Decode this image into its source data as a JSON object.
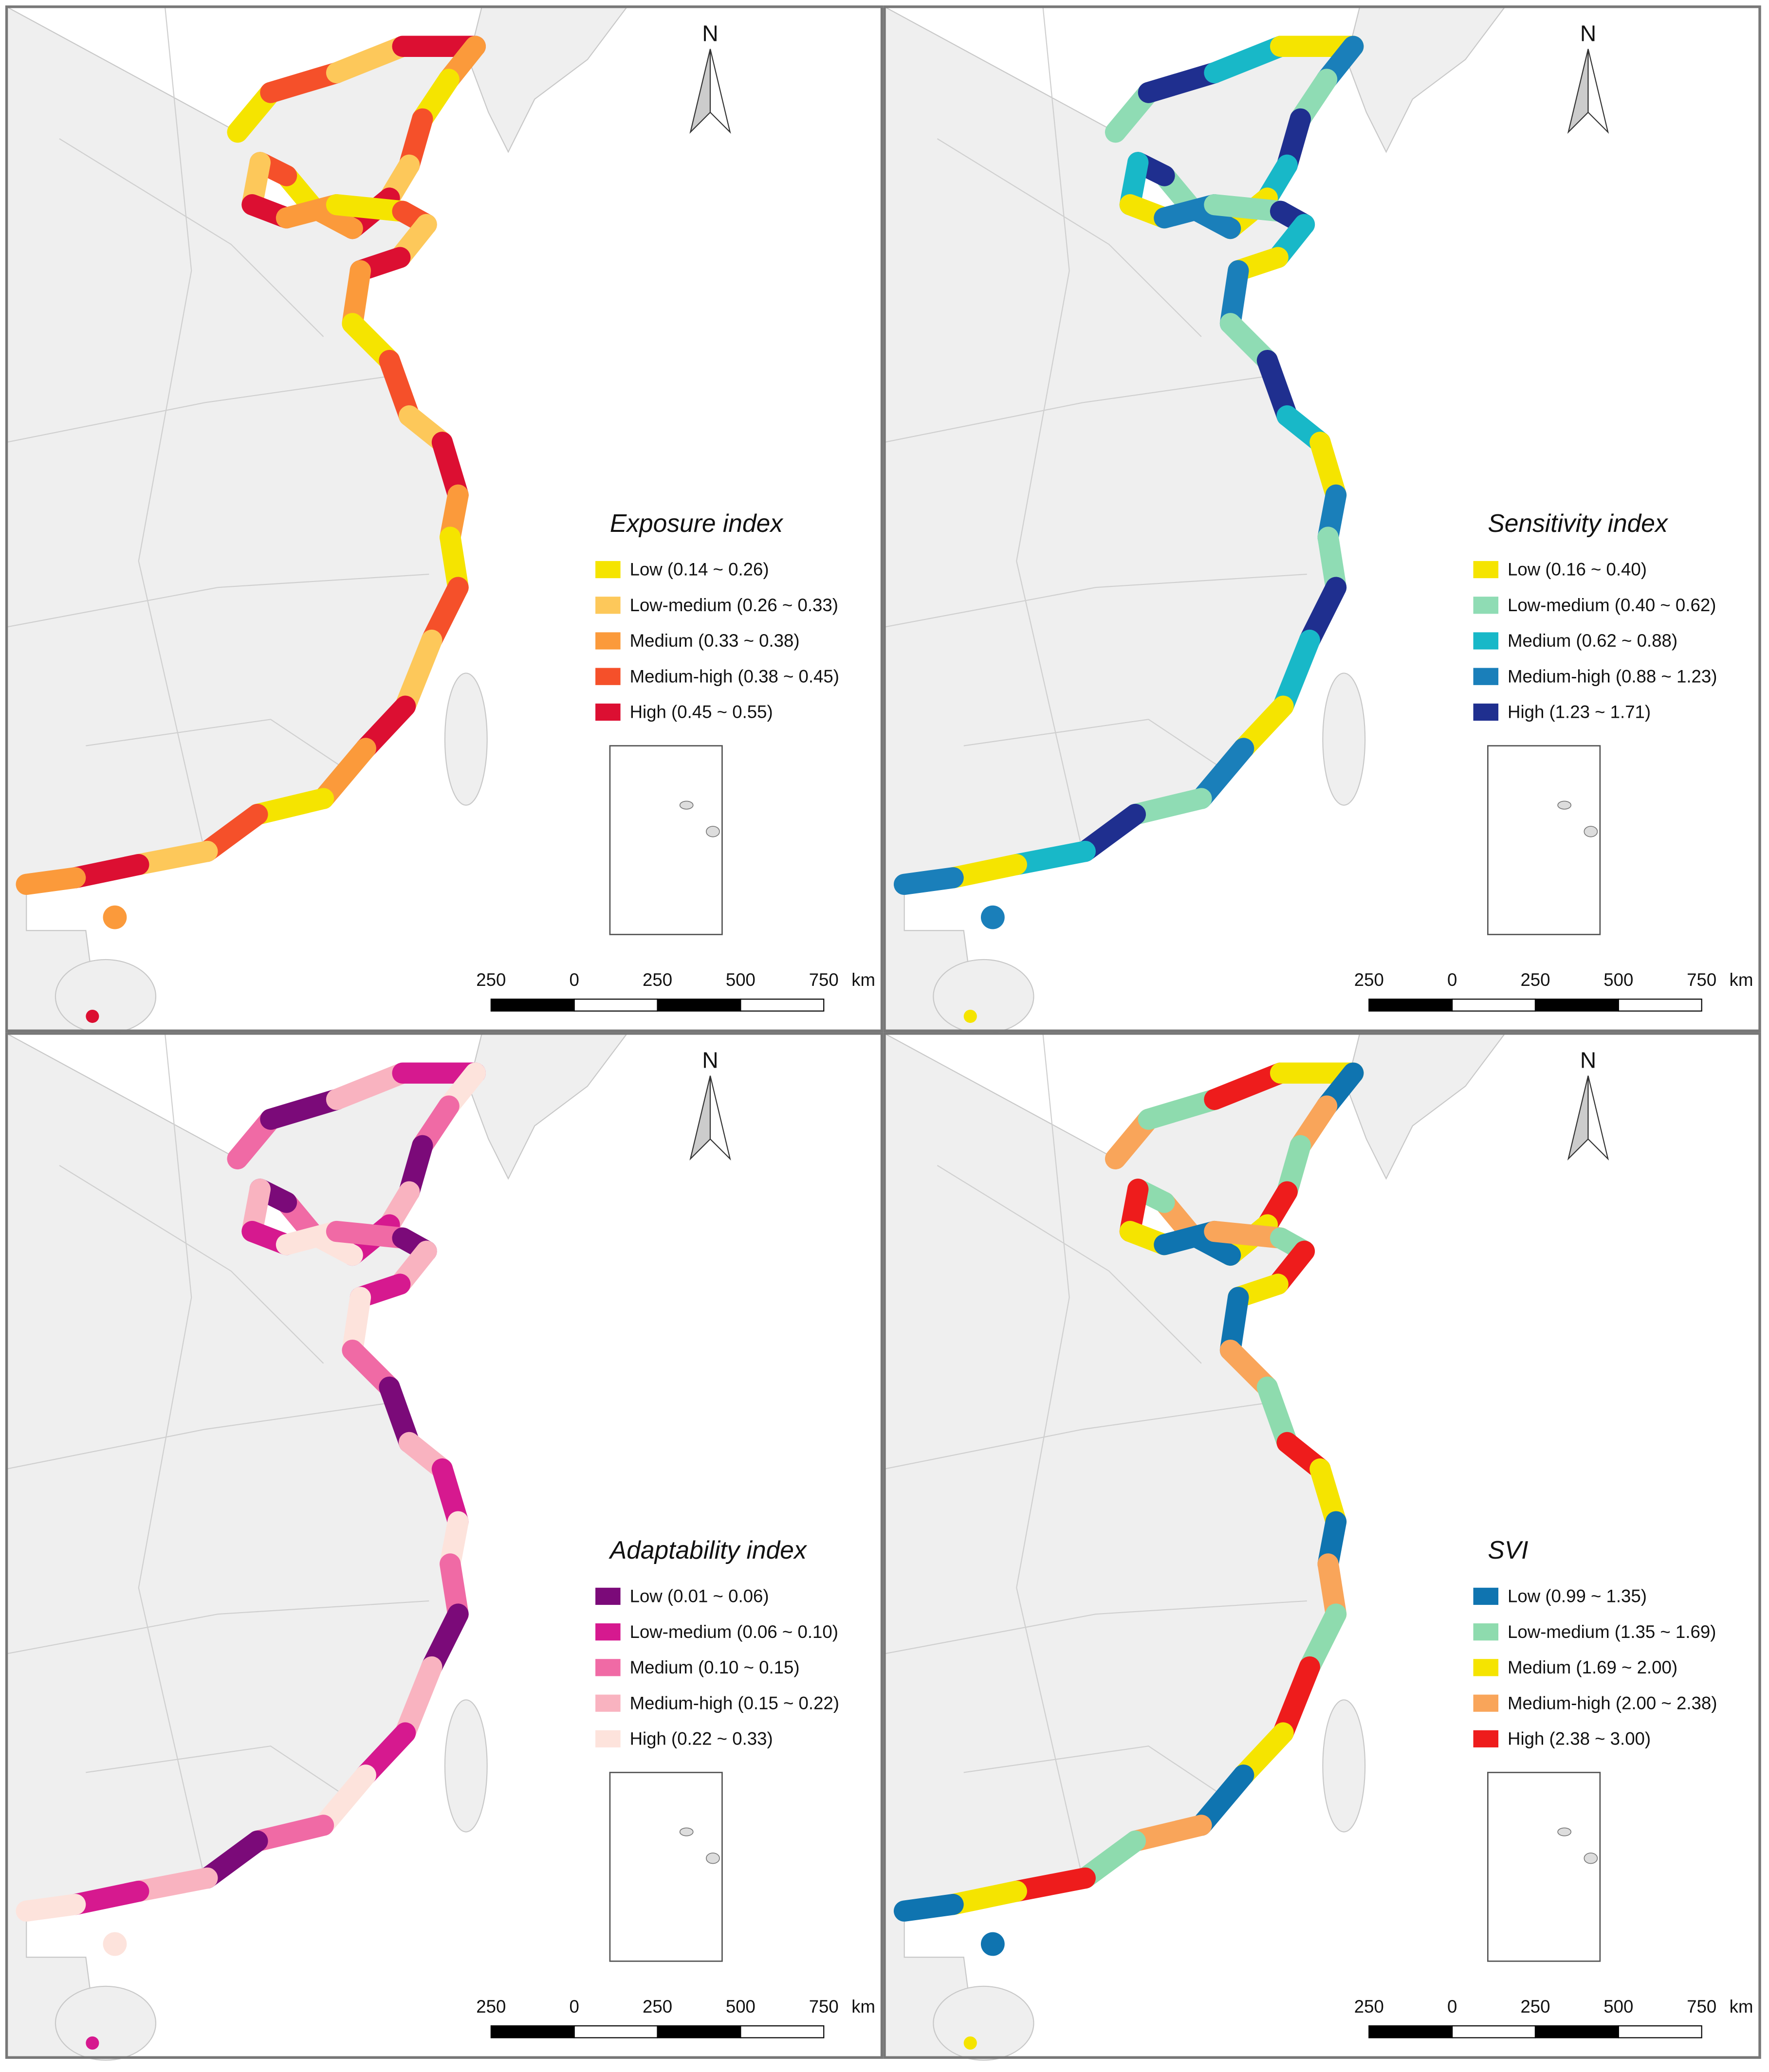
{
  "panels": [
    {
      "title": "Exposure index",
      "north": "N",
      "unit": "km",
      "scale_labels": [
        "250",
        "0",
        "250",
        "500",
        "750"
      ],
      "legend": [
        {
          "label": "Low (0.14 ~ 0.26)",
          "color": "#f5e400"
        },
        {
          "label": "Low-medium (0.26 ~ 0.33)",
          "color": "#fdc85a"
        },
        {
          "label": "Medium (0.33 ~ 0.38)",
          "color": "#fb9a3b"
        },
        {
          "label": "Medium-high (0.38 ~ 0.45)",
          "color": "#f5502a"
        },
        {
          "label": "High (0.45 ~ 0.55)",
          "color": "#dc0f32"
        }
      ]
    },
    {
      "title": "Sensitivity index",
      "north": "N",
      "unit": "km",
      "scale_labels": [
        "250",
        "0",
        "250",
        "500",
        "750"
      ],
      "legend": [
        {
          "label": "Low (0.16 ~ 0.40)",
          "color": "#f5e400"
        },
        {
          "label": "Low-medium (0.40 ~ 0.62)",
          "color": "#8fdcb4"
        },
        {
          "label": "Medium (0.62 ~ 0.88)",
          "color": "#18b8c8"
        },
        {
          "label": "Medium-high (0.88 ~ 1.23)",
          "color": "#1a7fba"
        },
        {
          "label": "High (1.23 ~ 1.71)",
          "color": "#1f2f8f"
        }
      ]
    },
    {
      "title": "Adaptability index",
      "north": "N",
      "unit": "km",
      "scale_labels": [
        "250",
        "0",
        "250",
        "500",
        "750"
      ],
      "legend": [
        {
          "label": "Low (0.01 ~ 0.06)",
          "color": "#7b0a79"
        },
        {
          "label": "Low-medium (0.06 ~ 0.10)",
          "color": "#d6198f"
        },
        {
          "label": "Medium (0.10 ~ 0.15)",
          "color": "#f06aa5"
        },
        {
          "label": "Medium-high (0.15 ~ 0.22)",
          "color": "#f9b3c0"
        },
        {
          "label": "High (0.22 ~ 0.33)",
          "color": "#fde3dc"
        }
      ]
    },
    {
      "title": "SVI",
      "north": "N",
      "unit": "km",
      "scale_labels": [
        "250",
        "0",
        "250",
        "500",
        "750"
      ],
      "legend": [
        {
          "label": "Low (0.99 ~ 1.35)",
          "color": "#0f74b0"
        },
        {
          "label": "Low-medium (1.35 ~ 1.69)",
          "color": "#8edbae"
        },
        {
          "label": "Medium (1.69 ~ 2.00)",
          "color": "#f5e400"
        },
        {
          "label": "Medium-high (2.00 ~ 2.38)",
          "color": "#f9a55a"
        },
        {
          "label": "High (2.38 ~ 3.00)",
          "color": "#ee1c1c"
        }
      ]
    }
  ]
}
